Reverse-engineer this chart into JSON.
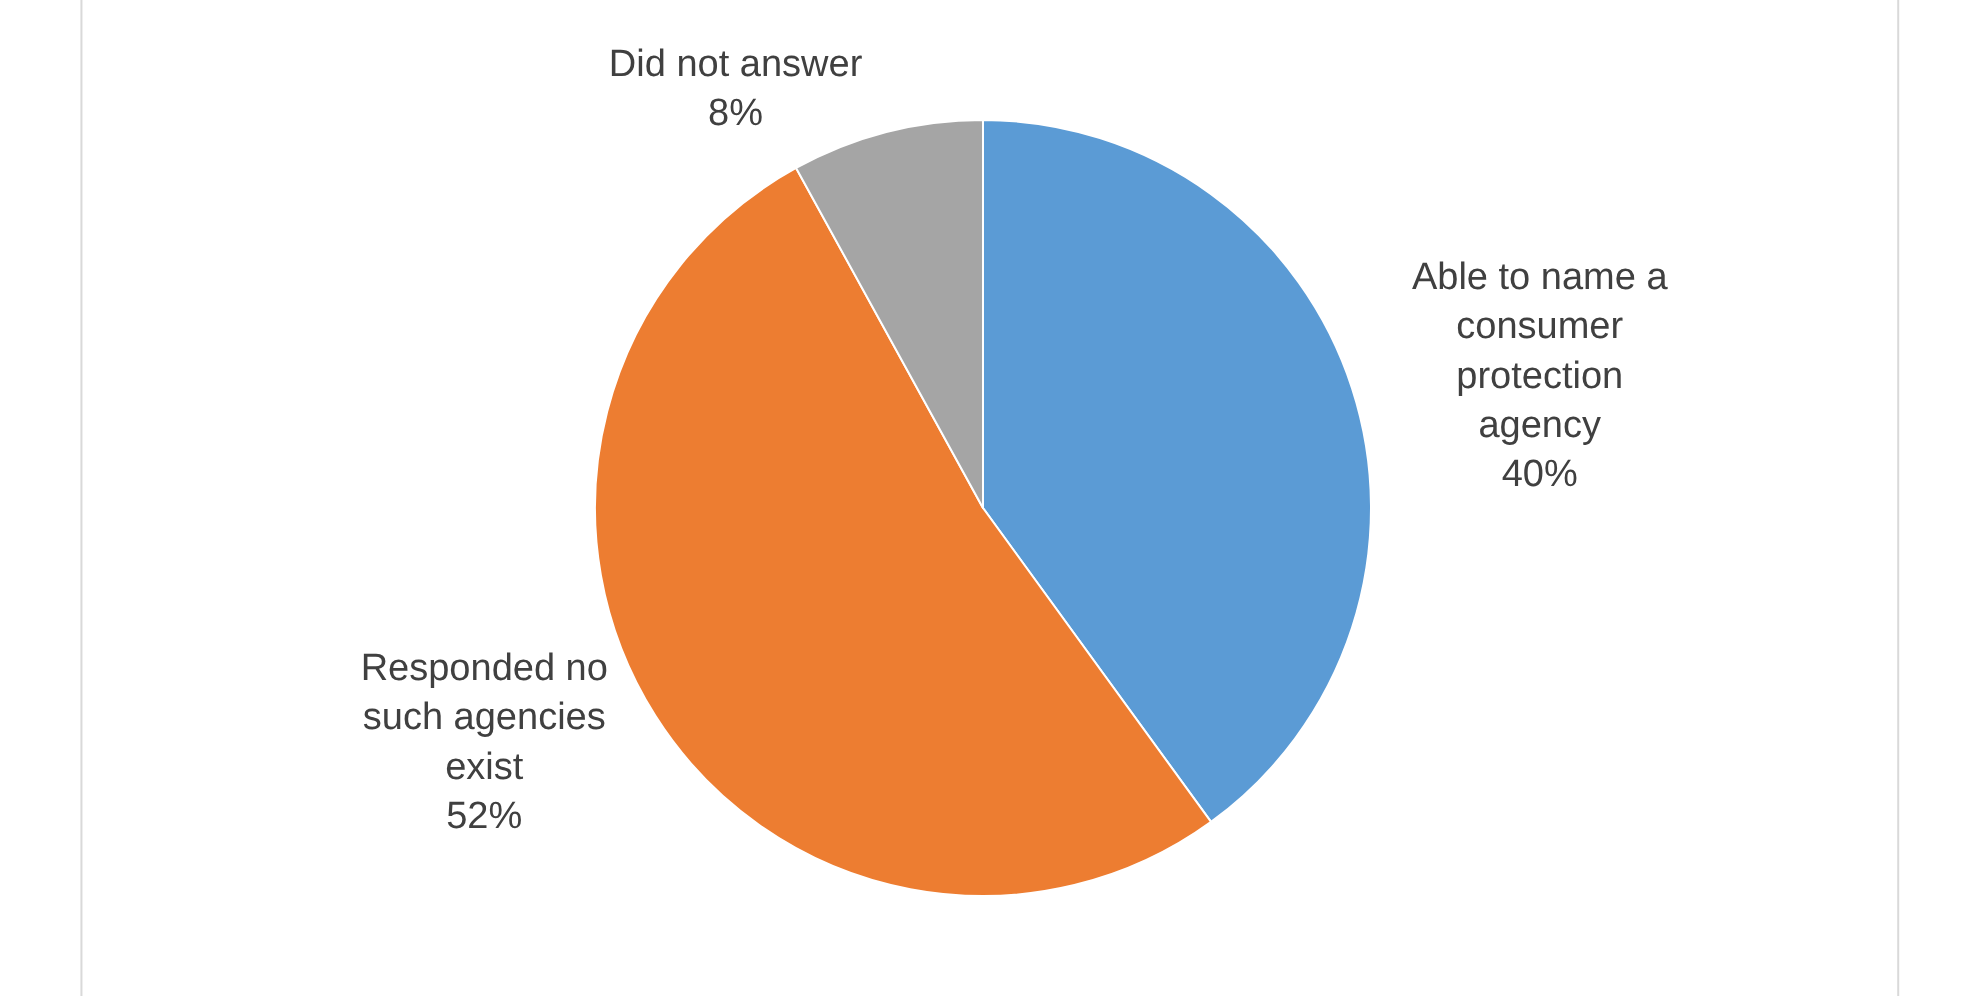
{
  "chart_data": {
    "type": "pie",
    "categories": [
      "Able to name a consumer protection agency",
      "Responded no such agencies exist",
      "Did not answer"
    ],
    "values": [
      40,
      52,
      8
    ],
    "colors": [
      "#5b9bd5",
      "#ed7d31",
      "#a5a5a5"
    ],
    "value_labels": [
      "40%",
      "52%",
      "8%"
    ],
    "legend": false
  }
}
